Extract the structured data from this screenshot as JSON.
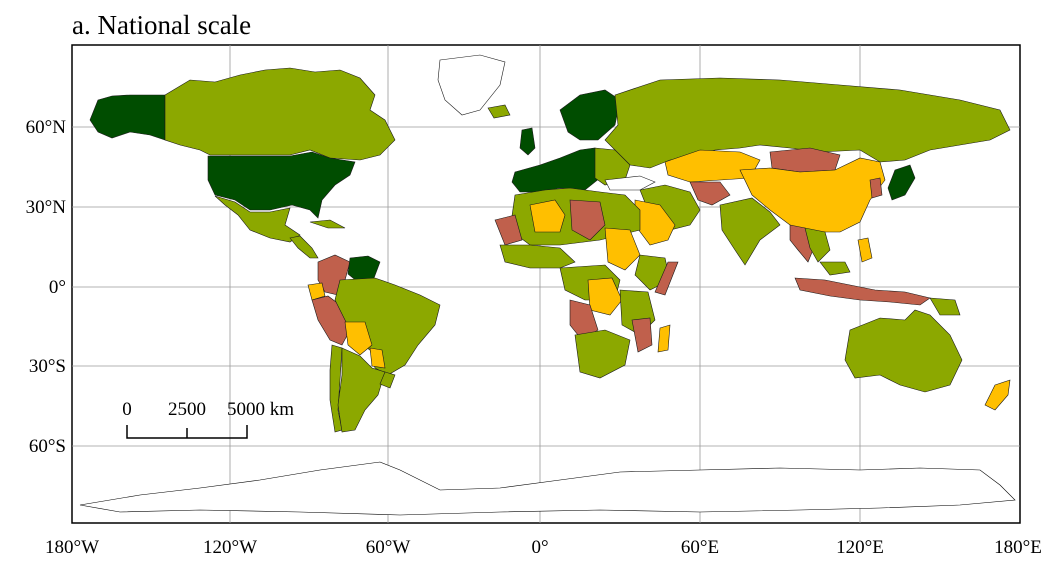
{
  "title": "a. National scale",
  "axes": {
    "lat_labels": [
      "60°N",
      "30°N",
      "0°",
      "30°S",
      "60°S"
    ],
    "lon_labels": [
      "180°W",
      "120°W",
      "60°W",
      "0°",
      "60°E",
      "120°E",
      "180°E"
    ]
  },
  "scale_bar": {
    "labels": [
      "0",
      "2500",
      "5000 km"
    ]
  },
  "legend_colors": {
    "dark_green": "#004d00",
    "olive_green": "#8ca800",
    "yellow": "#ffbf00",
    "red": "#c0604c"
  }
}
